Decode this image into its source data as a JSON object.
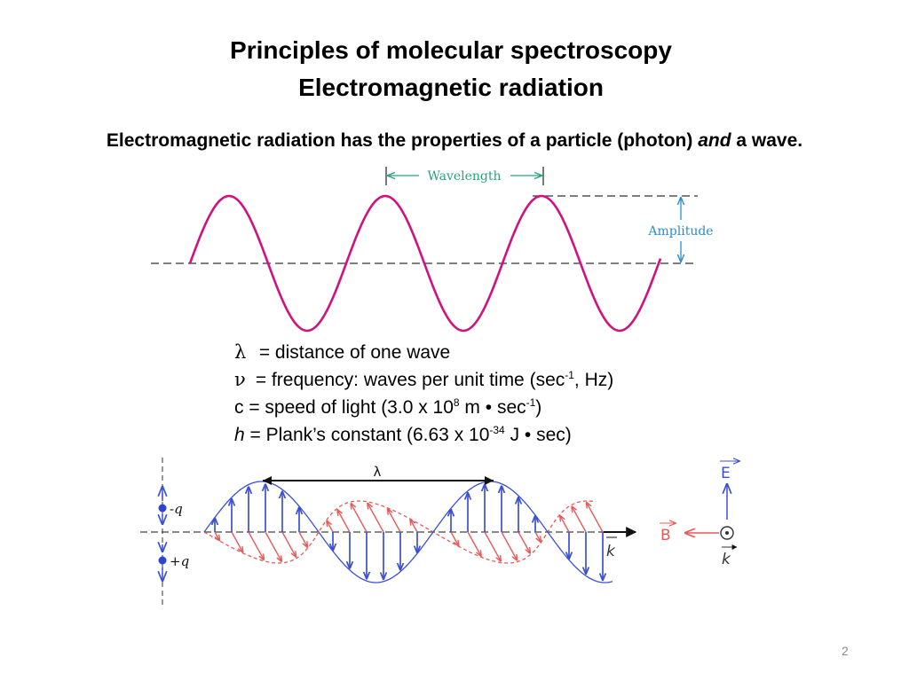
{
  "header": {
    "title_line1": "Principles of molecular spectroscopy",
    "title_line2": "Electromagnetic radiation"
  },
  "intro": {
    "before": "Electromagnetic radiation has the properties of a particle (photon) ",
    "emphasis": "and",
    "after": " a wave."
  },
  "wave_figure": {
    "wavelength_label": "Wavelength",
    "amplitude_label": "Amplitude",
    "wave_color": "#d0127f",
    "label_color_wavelength": "#2aa37a",
    "label_color_amplitude": "#2a8ccf"
  },
  "definitions": {
    "lambda": {
      "symbol": "λ",
      "text": " = distance of one wave"
    },
    "nu": {
      "symbol": "ν",
      "text": " = frequency: waves per unit time (sec",
      "sup": "-1",
      "after": ", Hz)"
    },
    "c": {
      "prefix": "c = speed of light (3.0 x 10",
      "sup1": "8",
      "middle": " m • sec",
      "sup2": "-1",
      "after": ")"
    },
    "h": {
      "symbol": "h",
      "prefix": " = Plank’s constant (6.63 x 10",
      "sup": "-34",
      "after": " J • sec)"
    }
  },
  "em_figure": {
    "minus_q": "-q",
    "plus_q": "+q",
    "lambda": "λ",
    "k": "k",
    "E": "E",
    "B": "B",
    "electric_color": "#3b4fd6",
    "magnetic_color": "#e8595a"
  },
  "footer": {
    "page_number": "2"
  }
}
